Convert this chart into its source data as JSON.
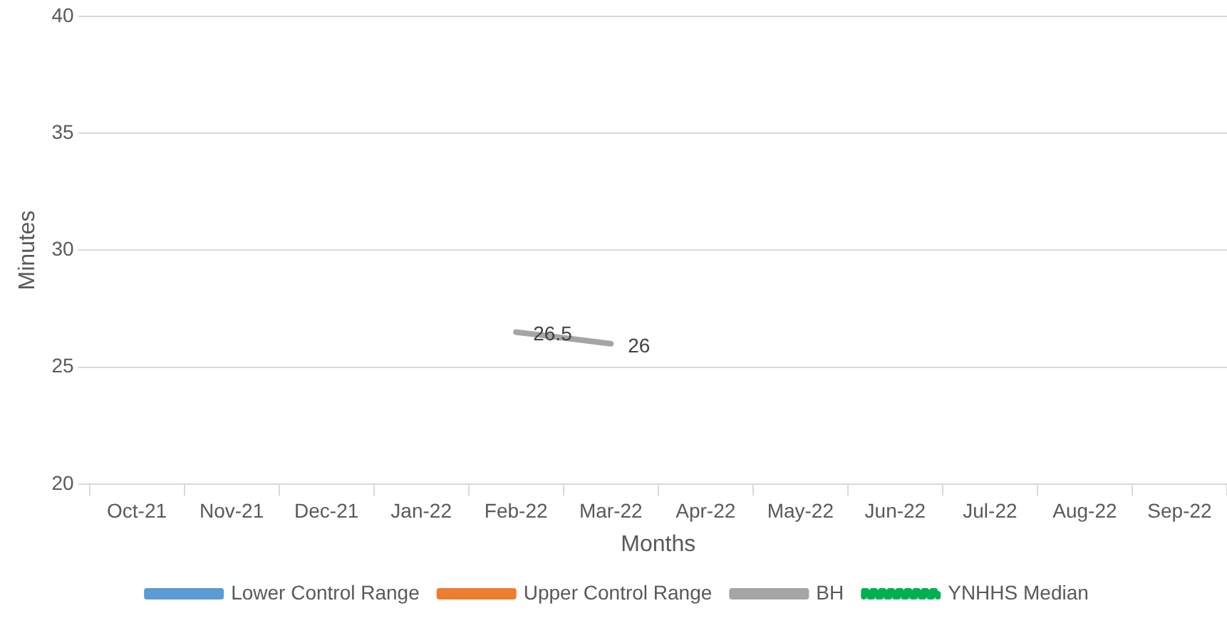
{
  "chart_data": {
    "type": "line",
    "xlabel": "Months",
    "ylabel": "Minutes",
    "categories": [
      "Oct-21",
      "Nov-21",
      "Dec-21",
      "Jan-22",
      "Feb-22",
      "Mar-22",
      "Apr-22",
      "May-22",
      "Jun-22",
      "Jul-22",
      "Aug-22",
      "Sep-22"
    ],
    "series": [
      {
        "name": "Lower Control Range",
        "color": "#5b9bd5",
        "values": [
          null,
          null,
          null,
          null,
          null,
          null,
          null,
          null,
          null,
          null,
          null,
          null
        ]
      },
      {
        "name": "Upper Control Range",
        "color": "#ed7d31",
        "values": [
          null,
          null,
          null,
          null,
          null,
          null,
          null,
          null,
          null,
          null,
          null,
          null
        ]
      },
      {
        "name": "BH",
        "color": "#a5a5a5",
        "values": [
          null,
          null,
          null,
          null,
          26.5,
          26,
          null,
          null,
          null,
          null,
          null,
          null
        ]
      },
      {
        "name": "YNHHS Median",
        "color": "#00b050",
        "line_style": "dotted",
        "values": [
          null,
          null,
          null,
          null,
          null,
          null,
          null,
          null,
          null,
          null,
          null,
          null
        ]
      }
    ],
    "ylim": [
      20,
      40
    ],
    "yticks": [
      20,
      25,
      30,
      35,
      40
    ],
    "grid": "y",
    "legend": "bottom",
    "marker": "none",
    "data_labels": true
  }
}
